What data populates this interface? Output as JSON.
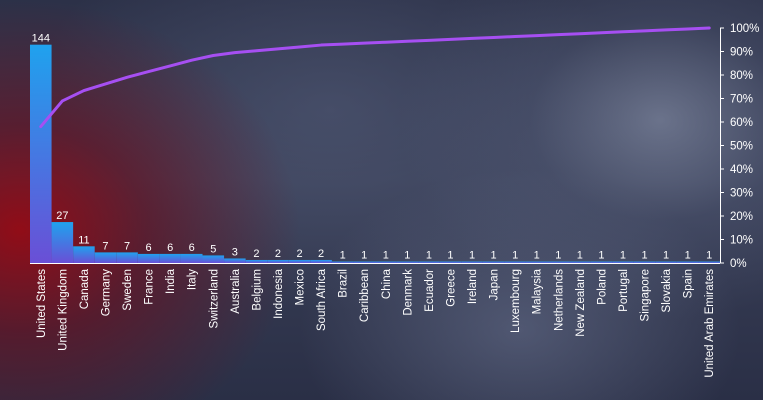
{
  "chart_data": {
    "type": "bar",
    "subtype": "pareto",
    "title": "",
    "xlabel": "",
    "ylabel": "",
    "categories": [
      "United States",
      "United Kingdom",
      "Canada",
      "Germany",
      "Sweden",
      "France",
      "India",
      "Italy",
      "Switzerland",
      "Australia",
      "Belgium",
      "Indonesia",
      "Mexico",
      "South Africa",
      "Brazil",
      "Caribbean",
      "China",
      "Denmark",
      "Ecuador",
      "Greece",
      "Ireland",
      "Japan",
      "Luxembourg",
      "Malaysia",
      "Netherlands",
      "New Zealand",
      "Poland",
      "Portugal",
      "Singapore",
      "Slovakia",
      "Spain",
      "United Arab Emirates"
    ],
    "values": [
      144,
      27,
      11,
      7,
      7,
      6,
      6,
      6,
      5,
      3,
      2,
      2,
      2,
      2,
      1,
      1,
      1,
      1,
      1,
      1,
      1,
      1,
      1,
      1,
      1,
      1,
      1,
      1,
      1,
      1,
      1,
      1
    ],
    "ylim": [
      0,
      155
    ],
    "cumulative_axis": {
      "ticks": [
        "0%",
        "10%",
        "20%",
        "30%",
        "40%",
        "50%",
        "60%",
        "70%",
        "80%",
        "90%",
        "100%"
      ],
      "range": [
        0,
        100
      ],
      "position": "right"
    },
    "grid": false,
    "legend": "none",
    "colors": {
      "bar_top": "#1fa2ee",
      "bar_bottom": "#6a4fd6",
      "line": "#a64ff2",
      "text": "#ffffff",
      "axis": "#ffffff"
    }
  }
}
